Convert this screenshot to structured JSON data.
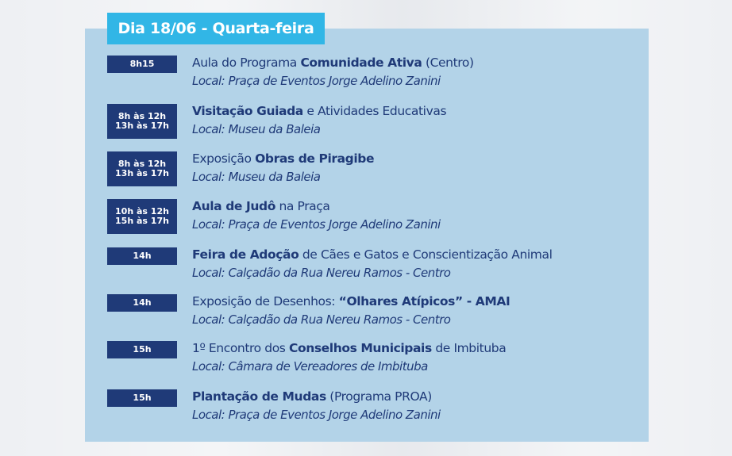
{
  "header": {
    "day_label": "Dia 18/06 - Quarta-feira"
  },
  "events": [
    {
      "times": [
        "8h15"
      ],
      "pre": "Aula do Programa ",
      "bold": "Comunidade Ativa",
      "post": " (Centro)",
      "location": "Local: Praça de Eventos Jorge Adelino Zanini"
    },
    {
      "times": [
        "8h às 12h",
        "13h às 17h"
      ],
      "pre": "",
      "bold": "Visitação Guiada",
      "post": " e Atividades Educativas",
      "location": "Local: Museu da Baleia"
    },
    {
      "times": [
        "8h às 12h",
        "13h às 17h"
      ],
      "pre": "Exposição ",
      "bold": "Obras de Piragibe",
      "post": "",
      "location": "Local: Museu da Baleia"
    },
    {
      "times": [
        "10h às 12h",
        "15h às 17h"
      ],
      "pre": "",
      "bold": "Aula de Judô",
      "post": " na Praça",
      "location": "Local: Praça de Eventos Jorge Adelino Zanini"
    },
    {
      "times": [
        "14h"
      ],
      "pre": "",
      "bold": "Feira de Adoção",
      "post": " de Cães e Gatos e Conscientização Animal",
      "location": "Local: Calçadão da Rua Nereu Ramos - Centro"
    },
    {
      "times": [
        "14h"
      ],
      "pre": "Exposição de Desenhos: ",
      "bold": "“Olhares Atípicos” - AMAI",
      "post": "",
      "location": "Local: Calçadão da Rua Nereu Ramos - Centro"
    },
    {
      "times": [
        "15h"
      ],
      "pre": "1º Encontro dos ",
      "bold": "Conselhos Municipais",
      "post": " de Imbituba",
      "location": "Local: Câmara de Vereadores de Imbituba"
    },
    {
      "times": [
        "15h"
      ],
      "pre": "",
      "bold": "Plantação de Mudas",
      "post": " (Programa PROA)",
      "location": "Local: Praça de Eventos Jorge Adelino Zanini"
    }
  ]
}
